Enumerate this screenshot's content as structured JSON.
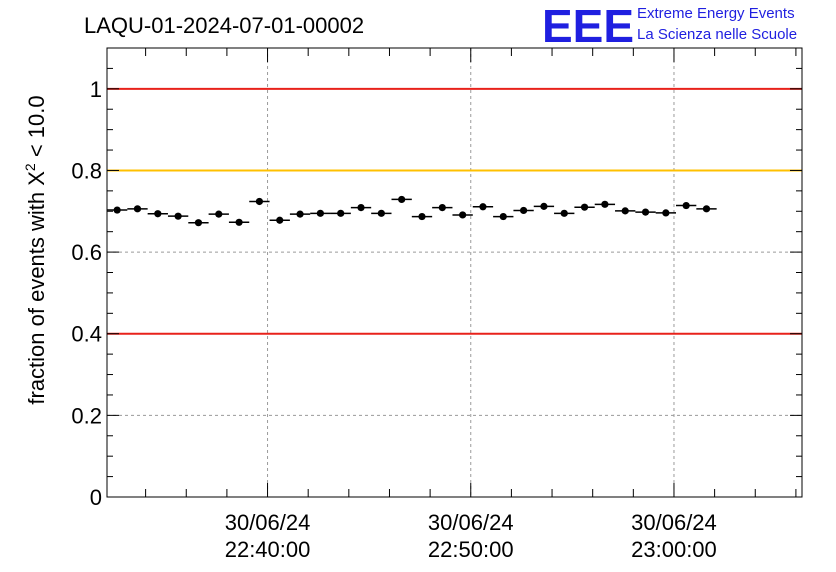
{
  "chart_data": {
    "type": "scatter",
    "title": "LAQU-01-2024-07-01-00002",
    "ylabel_prefix": "fraction of events with X",
    "ylabel_sup": "2",
    "ylabel_suffix": " < 10.0",
    "ylim": [
      0,
      1.1
    ],
    "xlim_minutes": [
      32.1,
      66.3
    ],
    "grid": true,
    "x_ticks": [
      {
        "minute": 40,
        "date": "30/06/24",
        "time": "22:40:00"
      },
      {
        "minute": 50,
        "date": "30/06/24",
        "time": "22:50:00"
      },
      {
        "minute": 60,
        "date": "30/06/24",
        "time": "23:00:00"
      }
    ],
    "y_ticks": [
      {
        "value": 0,
        "label": "0"
      },
      {
        "value": 0.2,
        "label": "0.2"
      },
      {
        "value": 0.4,
        "label": "0.4"
      },
      {
        "value": 0.6,
        "label": "0.6"
      },
      {
        "value": 0.8,
        "label": "0.8"
      },
      {
        "value": 1,
        "label": "1"
      }
    ],
    "reference_lines": [
      {
        "value": 1.0,
        "color": "#e8221b"
      },
      {
        "value": 0.8,
        "color": "#ffc000"
      },
      {
        "value": 0.4,
        "color": "#e8221b"
      }
    ],
    "x_start_time": "22:32:06",
    "bin_minutes": 1.0,
    "values": [
      0.703,
      0.706,
      0.694,
      0.688,
      0.672,
      0.693,
      0.673,
      0.724,
      0.678,
      0.693,
      0.695,
      0.695,
      0.709,
      0.695,
      0.729,
      0.687,
      0.709,
      0.691,
      0.711,
      0.687,
      0.702,
      0.712,
      0.695,
      0.71,
      0.717,
      0.701,
      0.698,
      0.696,
      0.714,
      0.706
    ],
    "marker_color": "#000000"
  },
  "logo": {
    "mark": "EEE",
    "line1": "Extreme Energy Events",
    "line2": "La Scienza nelle Scuole",
    "color": "#1f1fe0"
  }
}
